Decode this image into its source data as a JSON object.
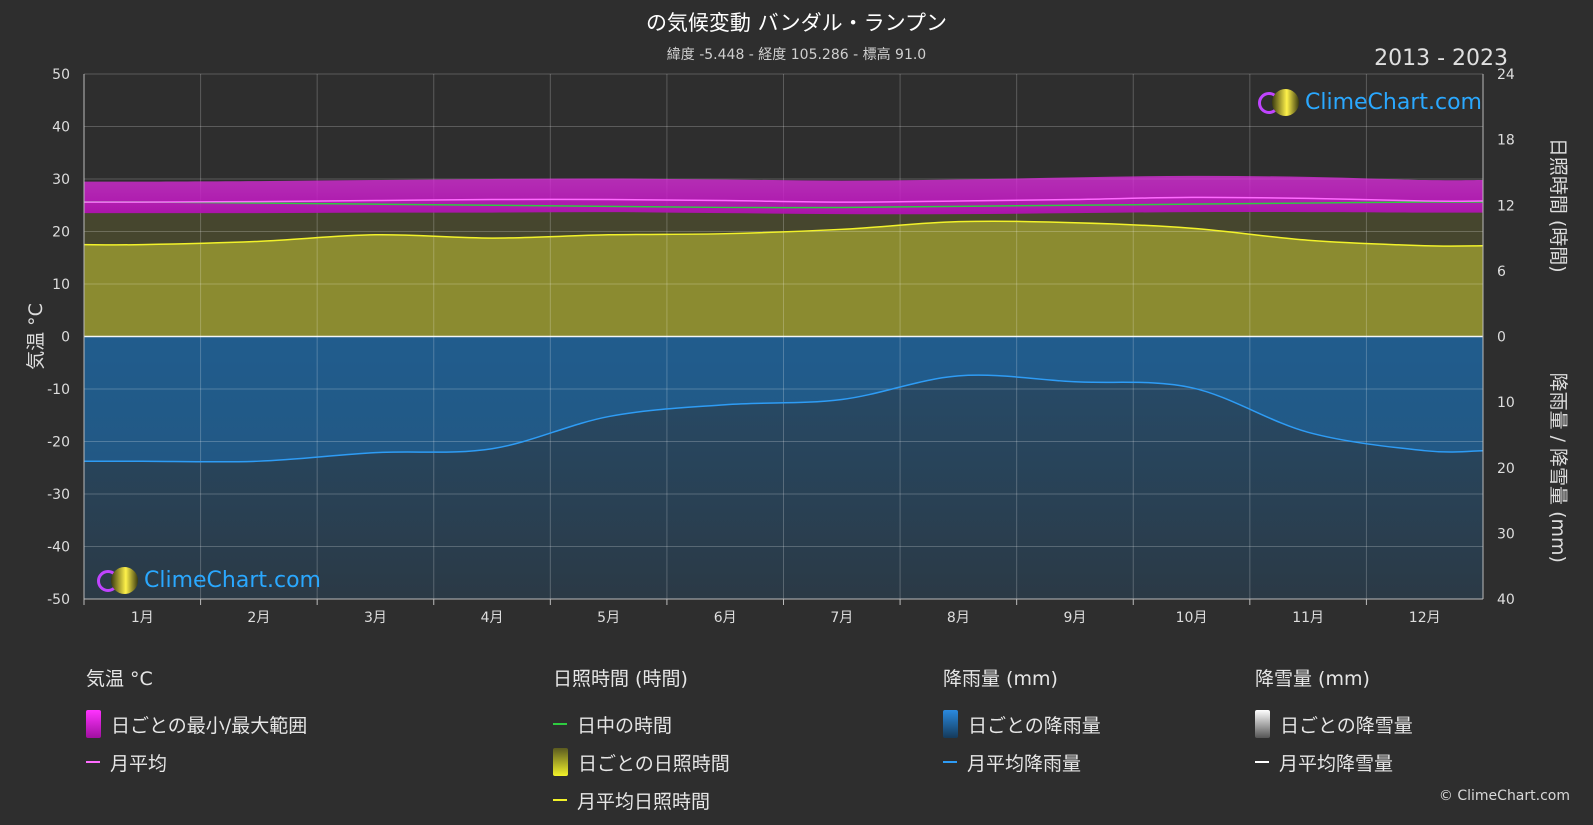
{
  "header": {
    "title": "の気候変動 バンダル・ランプン",
    "subtitle": "緯度 -5.448 - 経度 105.286 - 標高 91.0",
    "years": "2013 - 2023"
  },
  "logo_text": "ClimeChart.com",
  "copyright": "© ClimeChart.com",
  "colors": {
    "background": "#2e2e2e",
    "temp_range": "#d21ed2",
    "temp_avg": "#ff6cff",
    "daylight": "#2ecc40",
    "sunshine_fill": "#a8a832",
    "sunshine_avg": "#f2f22a",
    "rain_fill": "#1e6aa8",
    "rain_avg": "#2e9cf5",
    "snow_avg": "#ffffff"
  },
  "chart_data": {
    "type": "area",
    "categories": [
      "1月",
      "2月",
      "3月",
      "4月",
      "5月",
      "6月",
      "7月",
      "8月",
      "9月",
      "10月",
      "11月",
      "12月"
    ],
    "left_axis": {
      "label": "気温 °C",
      "range": [
        -50,
        50
      ],
      "ticks": [
        50,
        40,
        30,
        20,
        10,
        0,
        -10,
        -20,
        -30,
        -40,
        -50
      ]
    },
    "right_axis_top": {
      "label": "日照時間 (時間)",
      "range": [
        0,
        24
      ],
      "ticks": [
        24,
        18,
        12,
        6,
        0
      ]
    },
    "right_axis_bottom": {
      "label": "降雨量 / 降雪量 (mm)",
      "range": [
        0,
        40
      ],
      "ticks": [
        10,
        20,
        30,
        40
      ]
    },
    "series": [
      {
        "name": "日ごとの最小/最大範囲",
        "axis": "temp",
        "kind": "band",
        "min": [
          23.5,
          23.5,
          23.6,
          23.6,
          23.7,
          23.5,
          23.3,
          23.3,
          23.5,
          23.7,
          23.7,
          23.6
        ],
        "max": [
          29.5,
          29.6,
          29.8,
          30.0,
          30.1,
          29.9,
          29.7,
          29.9,
          30.3,
          30.6,
          30.4,
          29.8
        ]
      },
      {
        "name": "月平均",
        "axis": "temp",
        "kind": "line",
        "values": [
          25.6,
          25.7,
          25.9,
          26.1,
          26.1,
          25.9,
          25.6,
          25.8,
          26.1,
          26.5,
          26.3,
          25.8
        ]
      },
      {
        "name": "日中の時間",
        "axis": "sun",
        "kind": "line",
        "values": [
          12.3,
          12.2,
          12.1,
          12.0,
          11.9,
          11.8,
          11.8,
          11.9,
          12.0,
          12.1,
          12.2,
          12.3
        ]
      },
      {
        "name": "月平均日照時間",
        "axis": "sun",
        "kind": "line",
        "values": [
          8.4,
          8.7,
          9.3,
          9.0,
          9.3,
          9.4,
          9.8,
          10.5,
          10.4,
          9.9,
          8.8,
          8.3
        ]
      },
      {
        "name": "月平均降雨量",
        "axis": "rain",
        "kind": "line",
        "values": [
          19.0,
          19.0,
          17.7,
          17.1,
          12.2,
          10.4,
          9.6,
          6.0,
          6.9,
          7.8,
          14.6,
          17.4
        ]
      },
      {
        "name": "月平均降雪量",
        "axis": "rain",
        "kind": "line",
        "values": [
          0,
          0,
          0,
          0,
          0,
          0,
          0,
          0,
          0,
          0,
          0,
          0
        ]
      }
    ]
  },
  "legend": {
    "temp": {
      "heading": "気温 °C",
      "items": [
        "日ごとの最小/最大範囲",
        "月平均"
      ]
    },
    "sun": {
      "heading": "日照時間 (時間)",
      "items": [
        "日中の時間",
        "日ごとの日照時間",
        "月平均日照時間"
      ]
    },
    "rain": {
      "heading": "降雨量 (mm)",
      "items": [
        "日ごとの降雨量",
        "月平均降雨量"
      ]
    },
    "snow": {
      "heading": "降雪量 (mm)",
      "items": [
        "日ごとの降雪量",
        "月平均降雪量"
      ]
    }
  }
}
